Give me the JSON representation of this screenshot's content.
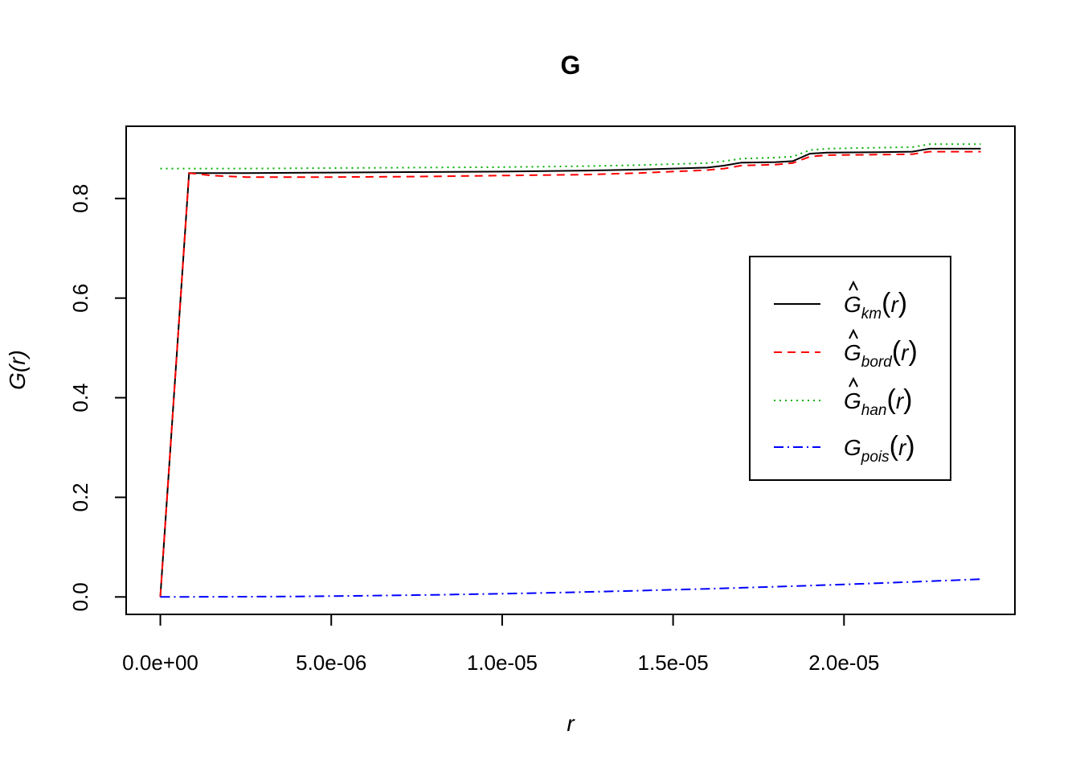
{
  "chart_data": {
    "type": "line",
    "title": "G",
    "xlabel": "r",
    "ylabel": "G(r)",
    "xlim": [
      -1e-06,
      2.5e-05
    ],
    "ylim": [
      -0.035,
      0.945
    ],
    "x_ticks": [
      {
        "value": 0,
        "label": "0.0e+00"
      },
      {
        "value": 5e-06,
        "label": "5.0e-06"
      },
      {
        "value": 1e-05,
        "label": "1.0e-05"
      },
      {
        "value": 1.5e-05,
        "label": "1.5e-05"
      },
      {
        "value": 2e-05,
        "label": "2.0e-05"
      }
    ],
    "y_ticks": [
      {
        "value": 0,
        "label": "0.0"
      },
      {
        "value": 0.2,
        "label": "0.2"
      },
      {
        "value": 0.4,
        "label": "0.4"
      },
      {
        "value": 0.6,
        "label": "0.6"
      },
      {
        "value": 0.8,
        "label": "0.8"
      }
    ],
    "legend_position": "right",
    "series": [
      {
        "name": "km",
        "legend": {
          "base": "G",
          "hat": true,
          "sub": "km",
          "arg": "r"
        },
        "color": "#000000",
        "dash": "",
        "x": [
          0,
          8.4e-07,
          2.5e-06,
          5e-06,
          7.5e-06,
          1e-05,
          1.25e-05,
          1.4e-05,
          1.6e-05,
          1.65e-05,
          1.7e-05,
          1.8e-05,
          1.85e-05,
          1.9e-05,
          1.95e-05,
          2.1e-05,
          2.2e-05,
          2.25e-05,
          2.4e-05
        ],
        "y": [
          0,
          0.851,
          0.851,
          0.852,
          0.853,
          0.854,
          0.856,
          0.858,
          0.862,
          0.866,
          0.872,
          0.873,
          0.875,
          0.89,
          0.892,
          0.893,
          0.894,
          0.9,
          0.9
        ]
      },
      {
        "name": "bord",
        "legend": {
          "base": "G",
          "hat": true,
          "sub": "bord",
          "arg": "r"
        },
        "color": "#ff0000",
        "dash": "10,7",
        "x": [
          0,
          8.4e-07,
          1.5e-06,
          2.5e-06,
          5e-06,
          7.5e-06,
          1e-05,
          1.25e-05,
          1.4e-05,
          1.6e-05,
          1.65e-05,
          1.7e-05,
          1.8e-05,
          1.85e-05,
          1.9e-05,
          1.95e-05,
          2.1e-05,
          2.2e-05,
          2.25e-05,
          2.4e-05
        ],
        "y": [
          0,
          0.851,
          0.846,
          0.843,
          0.843,
          0.844,
          0.846,
          0.848,
          0.851,
          0.857,
          0.86,
          0.866,
          0.868,
          0.871,
          0.884,
          0.887,
          0.888,
          0.889,
          0.894,
          0.894
        ]
      },
      {
        "name": "han",
        "legend": {
          "base": "G",
          "hat": true,
          "sub": "han",
          "arg": "r"
        },
        "color": "#00b000",
        "dash": "2,5",
        "x": [
          0,
          2.5e-06,
          5e-06,
          7.5e-06,
          1e-05,
          1.25e-05,
          1.4e-05,
          1.6e-05,
          1.65e-05,
          1.7e-05,
          1.8e-05,
          1.85e-05,
          1.9e-05,
          1.95e-05,
          2.1e-05,
          2.2e-05,
          2.25e-05,
          2.4e-05
        ],
        "y": [
          0.86,
          0.86,
          0.861,
          0.862,
          0.863,
          0.865,
          0.867,
          0.871,
          0.875,
          0.88,
          0.882,
          0.884,
          0.897,
          0.9,
          0.902,
          0.903,
          0.909,
          0.909
        ]
      },
      {
        "name": "pois",
        "legend": {
          "base": "G",
          "hat": false,
          "sub": "pois",
          "arg": "r"
        },
        "color": "#0000ff",
        "dash": "12,5,2,5",
        "x": [
          0,
          2e-06,
          4e-06,
          6e-06,
          8e-06,
          1e-05,
          1.2e-05,
          1.4e-05,
          1.6e-05,
          1.8e-05,
          2e-05,
          2.2e-05,
          2.4e-05
        ],
        "y": [
          0,
          0.0003,
          0.001,
          0.0024,
          0.0042,
          0.0065,
          0.0093,
          0.0126,
          0.0163,
          0.0205,
          0.0251,
          0.0302,
          0.0357
        ]
      }
    ]
  }
}
